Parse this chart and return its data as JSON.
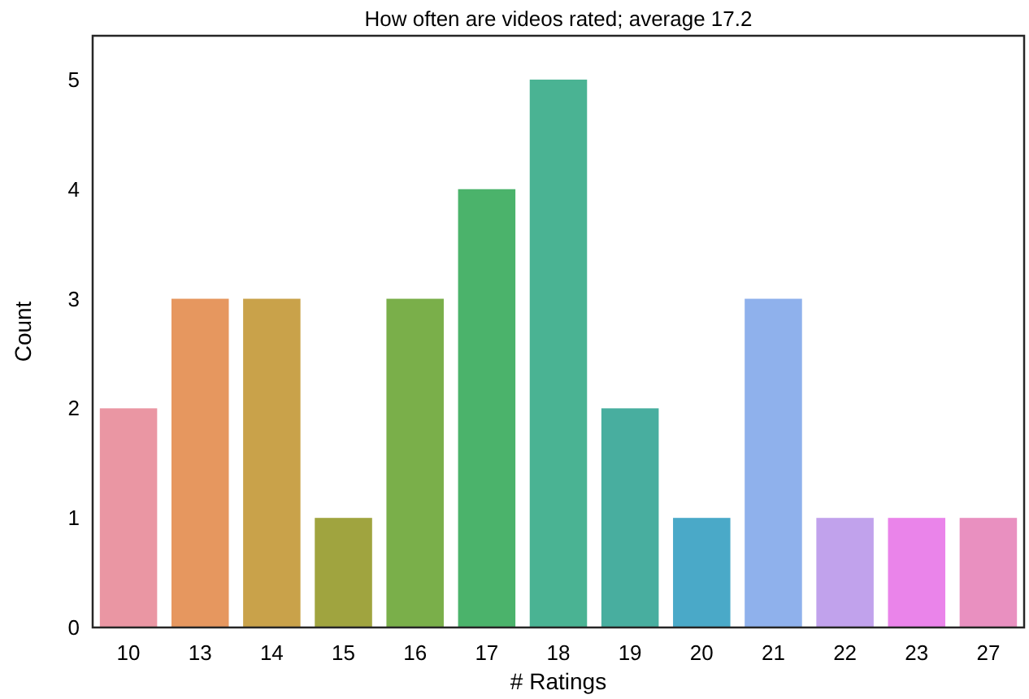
{
  "chart_data": {
    "type": "bar",
    "title": "How often are videos rated; average 17.2",
    "xlabel": "# Ratings",
    "ylabel": "Count",
    "categories": [
      "10",
      "13",
      "14",
      "15",
      "16",
      "17",
      "18",
      "19",
      "20",
      "21",
      "22",
      "23",
      "27"
    ],
    "values": [
      2,
      3,
      3,
      1,
      3,
      4,
      5,
      2,
      1,
      3,
      1,
      1,
      1
    ],
    "colors": [
      "#ea96a3",
      "#e6975f",
      "#c9a24a",
      "#a0a43f",
      "#7aaf4a",
      "#4bb36b",
      "#4ab393",
      "#48ae9f",
      "#4aa9c8",
      "#8fb1ec",
      "#c1a2ec",
      "#ea84ea",
      "#e990c0"
    ],
    "ylim": [
      0,
      5.4
    ],
    "yticks": [
      0,
      1,
      2,
      3,
      4,
      5
    ],
    "grid": false
  }
}
